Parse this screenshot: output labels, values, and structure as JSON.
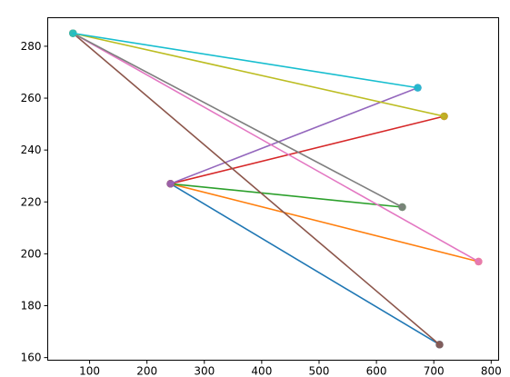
{
  "chart_data": {
    "type": "line",
    "title": "",
    "xlabel": "",
    "ylabel": "",
    "xlim": [
      27,
      813
    ],
    "ylim": [
      159,
      291
    ],
    "xticks": [
      100,
      200,
      300,
      400,
      500,
      600,
      700,
      800
    ],
    "yticks": [
      160,
      180,
      200,
      220,
      240,
      260,
      280
    ],
    "grid": false,
    "legend": "none",
    "series": [
      {
        "color": "#1f77b4",
        "points": [
          [
            241,
            227
          ],
          [
            710,
            165
          ]
        ]
      },
      {
        "color": "#ff7f0e",
        "points": [
          [
            241,
            227
          ],
          [
            778,
            197
          ]
        ]
      },
      {
        "color": "#2ca02c",
        "points": [
          [
            241,
            227
          ],
          [
            645,
            218
          ]
        ]
      },
      {
        "color": "#d62728",
        "points": [
          [
            241,
            227
          ],
          [
            718,
            253
          ]
        ]
      },
      {
        "color": "#9467bd",
        "points": [
          [
            241,
            227
          ],
          [
            672,
            264
          ]
        ]
      },
      {
        "color": "#8c564b",
        "points": [
          [
            71,
            285
          ],
          [
            710,
            165
          ]
        ]
      },
      {
        "color": "#e377c2",
        "points": [
          [
            71,
            285
          ],
          [
            778,
            197
          ]
        ]
      },
      {
        "color": "#7f7f7f",
        "points": [
          [
            71,
            285
          ],
          [
            645,
            218
          ]
        ]
      },
      {
        "color": "#bcbd22",
        "points": [
          [
            71,
            285
          ],
          [
            718,
            253
          ]
        ]
      },
      {
        "color": "#17becf",
        "points": [
          [
            71,
            285
          ],
          [
            672,
            264
          ]
        ]
      }
    ]
  }
}
